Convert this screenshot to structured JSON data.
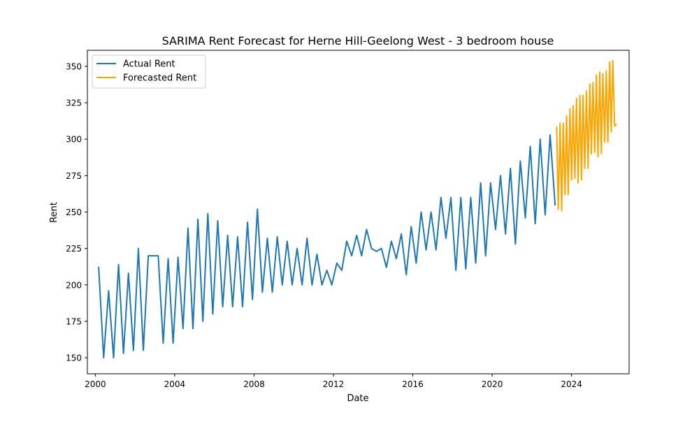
{
  "chart_data": {
    "type": "line",
    "title": "SARIMA Rent Forecast for Herne Hill-Geelong West - 3 bedroom house",
    "xlabel": "Date",
    "ylabel": "Rent",
    "xlim": [
      1999.6,
      2026.9
    ],
    "ylim": [
      139,
      361
    ],
    "x_ticks": [
      2000,
      2004,
      2008,
      2012,
      2016,
      2020,
      2024
    ],
    "x_tick_labels": [
      "2000",
      "2004",
      "2008",
      "2012",
      "2016",
      "2020",
      "2024"
    ],
    "y_ticks": [
      150,
      175,
      200,
      225,
      250,
      275,
      300,
      325,
      350
    ],
    "y_tick_labels": [
      "150",
      "175",
      "200",
      "225",
      "250",
      "275",
      "300",
      "325",
      "350"
    ],
    "grid": false,
    "legend_position": "top-left",
    "series": [
      {
        "name": "Actual Rent",
        "color": "#1f77b4",
        "x": [
          2000.17,
          2000.42,
          2000.67,
          2000.92,
          2001.17,
          2001.42,
          2001.67,
          2001.92,
          2002.17,
          2002.42,
          2002.67,
          2002.92,
          2003.17,
          2003.42,
          2003.67,
          2003.92,
          2004.17,
          2004.42,
          2004.67,
          2004.92,
          2005.17,
          2005.42,
          2005.67,
          2005.92,
          2006.17,
          2006.42,
          2006.67,
          2006.92,
          2007.17,
          2007.42,
          2007.67,
          2007.92,
          2008.17,
          2008.42,
          2008.67,
          2008.92,
          2009.17,
          2009.42,
          2009.67,
          2009.92,
          2010.17,
          2010.42,
          2010.67,
          2010.92,
          2011.17,
          2011.42,
          2011.67,
          2011.92,
          2012.17,
          2012.42,
          2012.67,
          2012.92,
          2013.17,
          2013.42,
          2013.67,
          2013.92,
          2014.17,
          2014.42,
          2014.67,
          2014.92,
          2015.17,
          2015.42,
          2015.67,
          2015.92,
          2016.17,
          2016.42,
          2016.67,
          2016.92,
          2017.17,
          2017.42,
          2017.67,
          2017.92,
          2018.17,
          2018.42,
          2018.67,
          2018.92,
          2019.17,
          2019.42,
          2019.67,
          2019.92,
          2020.17,
          2020.42,
          2020.67,
          2020.92,
          2021.17,
          2021.42,
          2021.67,
          2021.92,
          2022.17,
          2022.42,
          2022.67,
          2022.92,
          2023.17
        ],
        "y": [
          212,
          150,
          196,
          150,
          214,
          153,
          208,
          155,
          225,
          155,
          220,
          220,
          220,
          160,
          218,
          160,
          219,
          170,
          239,
          170,
          245,
          175,
          249,
          180,
          244,
          185,
          234,
          185,
          233,
          185,
          243,
          190,
          252,
          195,
          232,
          195,
          233,
          200,
          230,
          200,
          225,
          200,
          232,
          200,
          221,
          200,
          210,
          200,
          215,
          210,
          230,
          220,
          234,
          220,
          238,
          225,
          223,
          225,
          212,
          230,
          218,
          235,
          207,
          240,
          215,
          250,
          224,
          250,
          224,
          260,
          232,
          260,
          210,
          260,
          211,
          260,
          215,
          270,
          220,
          270,
          238,
          275,
          235,
          280,
          228,
          285,
          246,
          295,
          242,
          300,
          248,
          303,
          255
        ]
      },
      {
        "name": "Forecasted Rent",
        "color": "#ffa500",
        "x": [
          2023.25,
          2023.33,
          2023.42,
          2023.5,
          2023.58,
          2023.67,
          2023.75,
          2023.83,
          2023.92,
          2024.0,
          2024.08,
          2024.17,
          2024.25,
          2024.33,
          2024.42,
          2024.5,
          2024.58,
          2024.67,
          2024.75,
          2024.83,
          2024.92,
          2025.0,
          2025.08,
          2025.17,
          2025.25,
          2025.33,
          2025.42,
          2025.5,
          2025.58,
          2025.67,
          2025.75,
          2025.83,
          2025.92,
          2026.0,
          2026.08,
          2026.17,
          2026.25
        ],
        "y": [
          308,
          252,
          311,
          251,
          311,
          262,
          316,
          262,
          321,
          272,
          323,
          273,
          328,
          270,
          330,
          272,
          330,
          280,
          333,
          280,
          338,
          290,
          339,
          291,
          344,
          288,
          346,
          290,
          345,
          298,
          347,
          298,
          353,
          305,
          354,
          309,
          310
        ]
      }
    ]
  }
}
